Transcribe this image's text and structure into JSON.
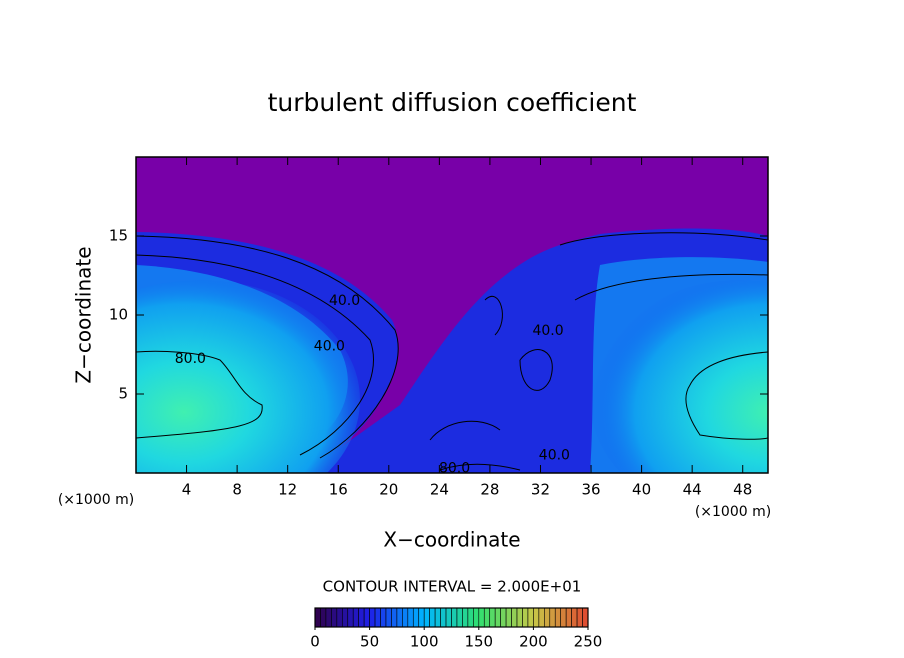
{
  "chart_data": {
    "type": "contour",
    "title": "turbulent diffusion coefficient",
    "x_label": "X−coordinate",
    "y_label": "Z−coordinate",
    "x_unit_label": "(×1000 m)",
    "x_unit_label_right": "(×1000 m)",
    "xlim": [
      0,
      50
    ],
    "ylim": [
      0,
      20
    ],
    "xticks": [
      4,
      8,
      12,
      16,
      20,
      24,
      28,
      32,
      36,
      40,
      44,
      48
    ],
    "yticks": [
      5,
      10,
      15
    ],
    "contour_labels": [
      {
        "x": 16.5,
        "y": 10.9,
        "label": "40.0"
      },
      {
        "x": 15.3,
        "y": 8.0,
        "label": "40.0"
      },
      {
        "x": 4.3,
        "y": 7.2,
        "label": "80.0"
      },
      {
        "x": 25.2,
        "y": 0.3,
        "label": "80.0"
      },
      {
        "x": 33.1,
        "y": 1.1,
        "label": "40.0"
      },
      {
        "x": 32.6,
        "y": 9.0,
        "label": "40.0"
      }
    ],
    "colorbar_title": "CONTOUR INTERVAL = 2.000E+01",
    "clim": [
      0,
      250
    ],
    "cticks": [
      0,
      50,
      100,
      150,
      200,
      250
    ],
    "colorscale": [
      "#300048",
      "#1e1ee8",
      "#00b4ff",
      "#30e070",
      "#c8c848",
      "#e04830"
    ]
  }
}
